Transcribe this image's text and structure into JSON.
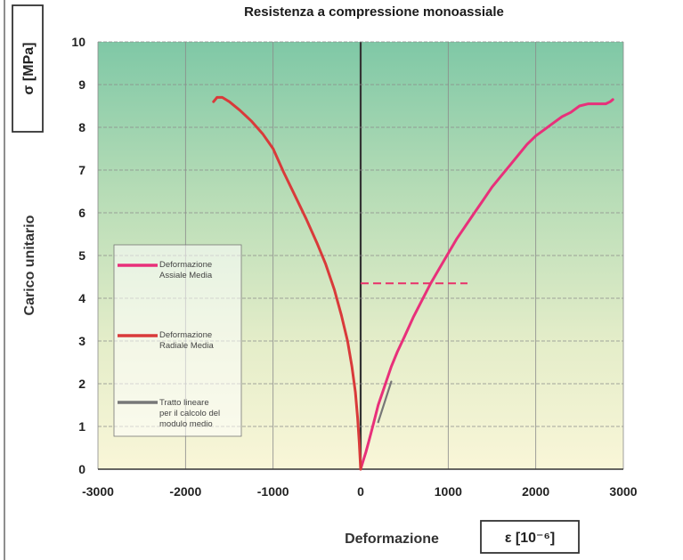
{
  "chart_data": {
    "type": "line",
    "title": "Resistenza a compressione monoassiale",
    "xlabel": "Deformazione",
    "xunit": "ε [10⁻⁶]",
    "ylabel": "Carico unitario",
    "yunit": "σ [MPa]",
    "xlim": [
      -3000,
      3000
    ],
    "ylim": [
      0,
      10
    ],
    "x_ticks": [
      "-3000",
      "-2000",
      "-1000",
      "0",
      "1000",
      "2000",
      "3000"
    ],
    "y_ticks": [
      "0",
      "1",
      "2",
      "3",
      "4",
      "5",
      "6",
      "7",
      "8",
      "9",
      "10"
    ],
    "grid": true,
    "legend_position": "left",
    "series": [
      {
        "name": "Deformazione Assiale Media",
        "color": "#e8307a",
        "x": [
          0,
          30,
          60,
          100,
          150,
          200,
          250,
          300,
          350,
          420,
          500,
          600,
          700,
          800,
          900,
          1000,
          1100,
          1200,
          1300,
          1400,
          1500,
          1600,
          1700,
          1800,
          1900,
          2000,
          2100,
          2200,
          2300,
          2400,
          2500,
          2600,
          2700,
          2800,
          2850,
          2880
        ],
        "y": [
          0,
          0.2,
          0.4,
          0.7,
          1.1,
          1.5,
          1.8,
          2.1,
          2.4,
          2.75,
          3.1,
          3.55,
          3.95,
          4.35,
          4.7,
          5.05,
          5.4,
          5.7,
          6.0,
          6.3,
          6.6,
          6.85,
          7.1,
          7.35,
          7.6,
          7.8,
          7.95,
          8.1,
          8.25,
          8.35,
          8.5,
          8.55,
          8.55,
          8.55,
          8.6,
          8.65
        ]
      },
      {
        "name": "Deformazione Radiale Media",
        "color": "#d93a3a",
        "x": [
          0,
          -15,
          -35,
          -60,
          -100,
          -150,
          -220,
          -300,
          -400,
          -500,
          -620,
          -750,
          -880,
          -1000,
          -1120,
          -1250,
          -1380,
          -1500,
          -1580,
          -1640,
          -1680
        ],
        "y": [
          0,
          0.6,
          1.2,
          1.8,
          2.4,
          3.0,
          3.6,
          4.2,
          4.8,
          5.3,
          5.85,
          6.4,
          6.95,
          7.5,
          7.85,
          8.15,
          8.4,
          8.6,
          8.7,
          8.7,
          8.6
        ]
      },
      {
        "name": "Tratto lineare per il calcolo del modulo medio",
        "color": "#777777",
        "x": [
          200,
          350
        ],
        "y": [
          1.1,
          2.05
        ]
      }
    ],
    "annotations": [
      {
        "type": "dashed-line",
        "color": "#e8306a",
        "x": [
          0,
          1220
        ],
        "y": 4.35
      }
    ]
  }
}
